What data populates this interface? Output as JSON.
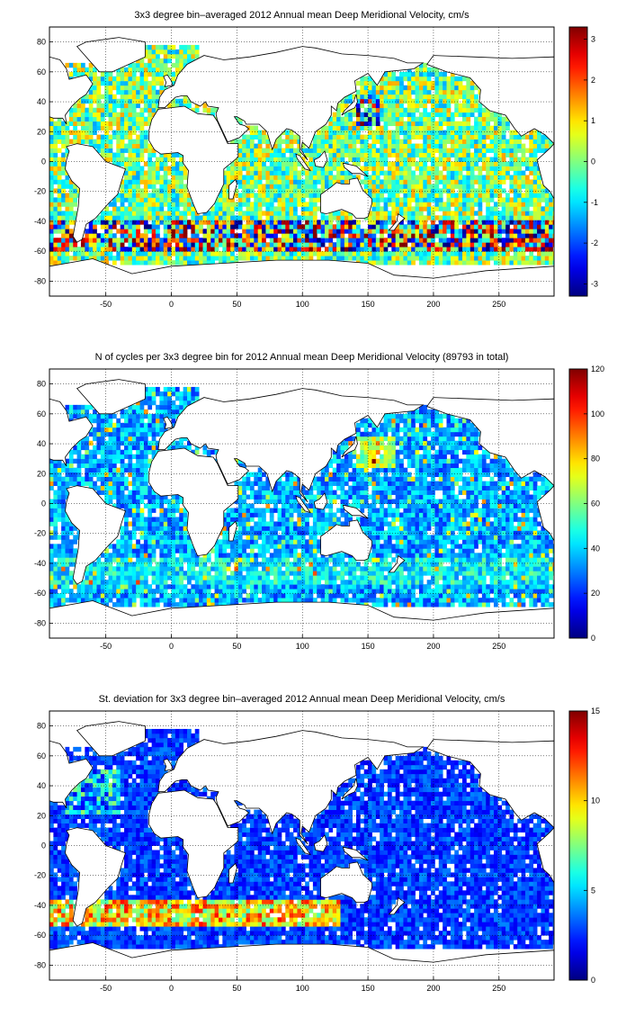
{
  "chart_data": [
    {
      "type": "heatmap",
      "title": "3x3 degree bin–averaged 2012 Annual mean Deep Meridional Velocity, cm/s",
      "xlim": [
        -93,
        292
      ],
      "ylim": [
        -90,
        90
      ],
      "xticks": [
        "-50",
        "0",
        "50",
        "100",
        "150",
        "200",
        "250"
      ],
      "yticks": [
        "80",
        "60",
        "40",
        "20",
        "0",
        "-20",
        "-40",
        "-60",
        "-80"
      ],
      "colorbar": {
        "min": -3.3,
        "max": 3.3,
        "ticks": [
          "3",
          "2",
          "1",
          "0",
          "-1",
          "-2",
          "-3"
        ]
      },
      "bin_deg": 3,
      "variable": "velocity"
    },
    {
      "type": "heatmap",
      "title": "N of cycles per 3x3 degree bin for 2012 Annual mean Deep Meridional Velocity (89793 in total)",
      "xlim": [
        -93,
        292
      ],
      "ylim": [
        -90,
        90
      ],
      "xticks": [
        "-50",
        "0",
        "50",
        "100",
        "150",
        "200",
        "250"
      ],
      "yticks": [
        "80",
        "60",
        "40",
        "20",
        "0",
        "-20",
        "-40",
        "-60",
        "-80"
      ],
      "colorbar": {
        "min": 0,
        "max": 120,
        "ticks": [
          "120",
          "100",
          "80",
          "60",
          "40",
          "20",
          "0"
        ]
      },
      "bin_deg": 3,
      "variable": "count"
    },
    {
      "type": "heatmap",
      "title": "St. deviation for 3x3 degree bin–averaged 2012 Annual mean Deep Meridional Velocity, cm/s",
      "xlim": [
        -93,
        292
      ],
      "ylim": [
        -90,
        90
      ],
      "xticks": [
        "-50",
        "0",
        "50",
        "100",
        "150",
        "200",
        "250"
      ],
      "yticks": [
        "80",
        "60",
        "40",
        "20",
        "0",
        "-20",
        "-40",
        "-60",
        "-80"
      ],
      "colorbar": {
        "min": 0,
        "max": 15,
        "ticks": [
          "15",
          "10",
          "5",
          "0"
        ]
      },
      "bin_deg": 3,
      "variable": "std"
    }
  ],
  "colormap": "jet"
}
